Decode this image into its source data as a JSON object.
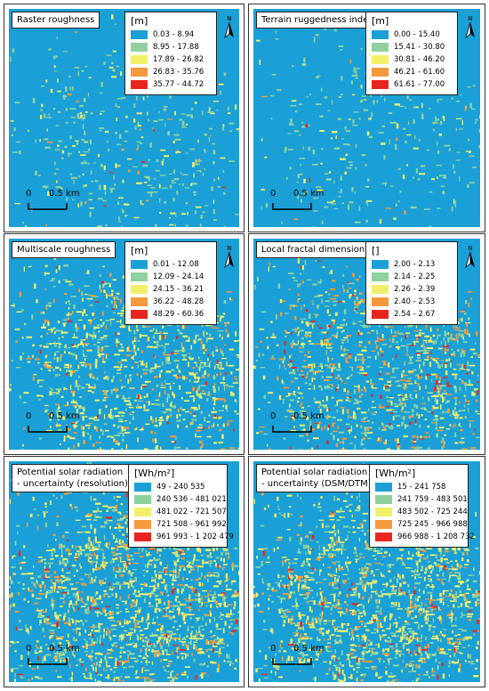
{
  "colors": {
    "class1": "#1aa0d6",
    "class2": "#8fd19e",
    "class3": "#f2f06a",
    "class4": "#f59a3c",
    "class5": "#e8261f"
  },
  "north_label": "N",
  "scale": {
    "zero": "0",
    "label": "0.5 km"
  },
  "panels": [
    {
      "title": "Raster roughness",
      "unit": "[m]",
      "classes": [
        "0.03 - 8.94",
        "8.95 - 17.88",
        "17.89 - 26.82",
        "26.83 - 35.76",
        "35.77 - 44.72"
      ]
    },
    {
      "title": "Terrain ruggedness index",
      "unit": "[m]",
      "classes": [
        "0.00 - 15.40",
        "15.41 - 30.80",
        "30.81 - 46.20",
        "46.21 - 61.60",
        "61.61 - 77.00"
      ]
    },
    {
      "title": "Multiscale roughness",
      "unit": "[m]",
      "classes": [
        "0.01 - 12.08",
        "12.09 - 24.14",
        "24.15 - 36.21",
        "36.22 - 48.28",
        "48.29 - 60.36"
      ]
    },
    {
      "title": "Local fractal dimension",
      "unit": "[]",
      "classes": [
        "2.00 - 2.13",
        "2.14 - 2.25",
        "2.26 - 2.39",
        "2.40 - 2.53",
        "2.54 - 2.67"
      ]
    },
    {
      "title": "Potential solar radiation\n- uncertainty (resolution)",
      "unit": "[Wh/m²]",
      "classes": [
        "49 - 240 535",
        "240 536 - 481 021",
        "481 022 - 721 507",
        "721 508 - 961 992",
        "961 993 - 1 202 479"
      ]
    },
    {
      "title": "Potential solar radiation\n- uncertainty (DSM/DTM)",
      "unit": "[Wh/m²]",
      "classes": [
        "15 - 241 758",
        "241 759 - 483 501",
        "483 502 - 725 244",
        "725 245 - 966 988",
        "966 988 - 1 208 732"
      ]
    }
  ]
}
